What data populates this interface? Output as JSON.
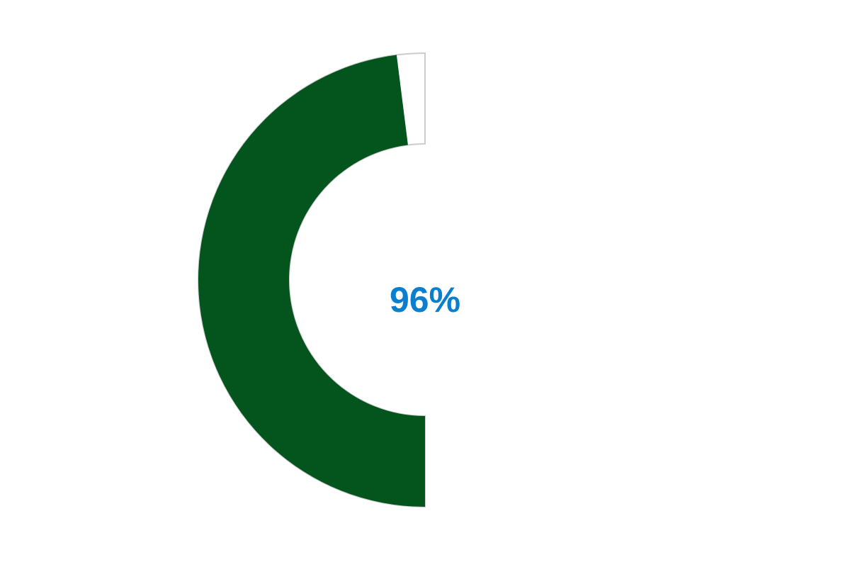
{
  "chart_data": {
    "type": "gauge",
    "value": 96,
    "min": 0,
    "max": 100,
    "value_label": "96%",
    "colors": {
      "fill": "#04541e",
      "track": "#ffffff",
      "track_border": "#cccccc",
      "label": "#0a7fd0"
    }
  }
}
